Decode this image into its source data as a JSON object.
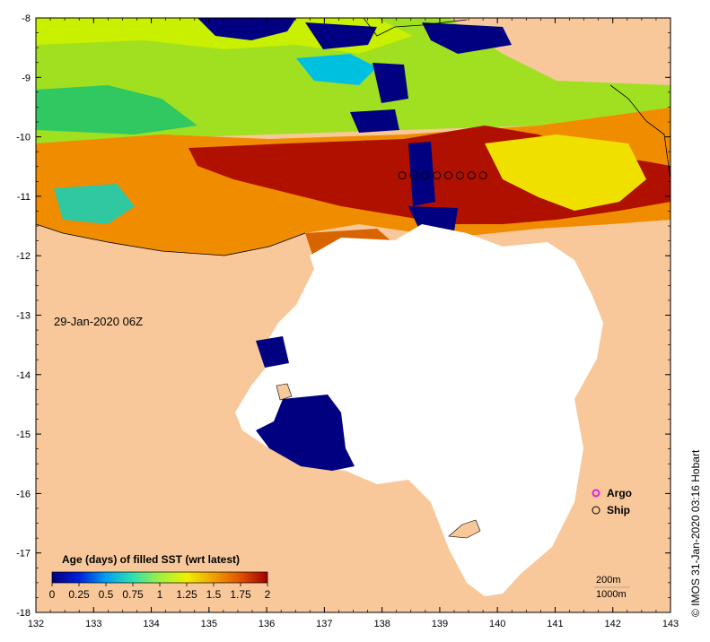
{
  "map": {
    "timestamp_label": "29-Jan-2020 06Z",
    "colorbar": {
      "title": "Age (days) of filled SST (wrt latest)",
      "min": 0,
      "max": 2,
      "tick_labels": [
        "0",
        "0.25",
        "0.5",
        "0.75",
        "1",
        "1.25",
        "1.5",
        "1.75",
        "2"
      ],
      "colors": [
        "#000080",
        "#0020d8",
        "#00a0f0",
        "#30e0b0",
        "#a0f040",
        "#f0f000",
        "#f0a000",
        "#e05000",
        "#a00000"
      ]
    },
    "legend": {
      "argo_label": "Argo",
      "ship_label": "Ship",
      "argo_color": "#e020e0",
      "ship_color": "#000000"
    },
    "contour_legend": {
      "depth_200_label": "200m",
      "depth_1000_label": "1000m"
    },
    "x_axis": {
      "min": 132,
      "max": 143,
      "tick_labels": [
        "132",
        "133",
        "134",
        "135",
        "136",
        "137",
        "138",
        "139",
        "140",
        "141",
        "142",
        "143"
      ]
    },
    "y_axis": {
      "min": -18,
      "max": -8,
      "tick_labels": [
        "-8",
        "-9",
        "-10",
        "-11",
        "-12",
        "-13",
        "-14",
        "-15",
        "-16",
        "-17",
        "-18"
      ]
    },
    "ship_track": {
      "lat": -10.65,
      "lons": [
        138.35,
        138.55,
        138.75,
        138.95,
        139.15,
        139.35,
        139.55,
        139.75
      ]
    },
    "credit": "© IMOS 31-Jan-2020 03:16 Hobart",
    "land_color": "#f8c89a",
    "no_data_color": "#ffffff"
  }
}
